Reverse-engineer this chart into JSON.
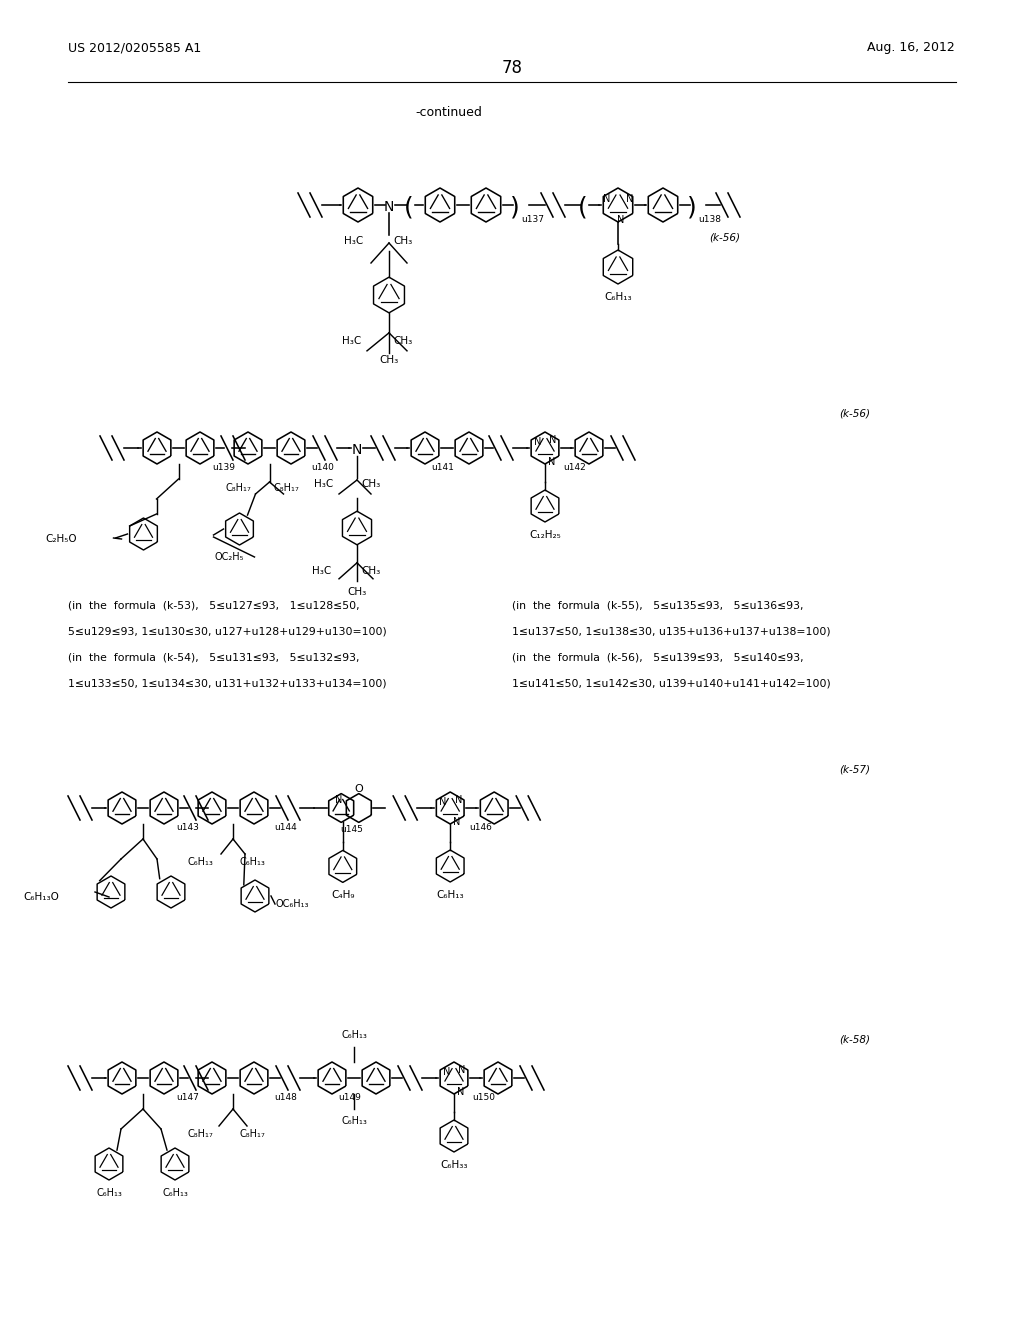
{
  "page_header_left": "US 2012/0205585 A1",
  "page_header_right": "Aug. 16, 2012",
  "page_number": "78",
  "continued_label": "-continued",
  "background_color": "#ffffff",
  "text_color": "#000000",
  "cond_col1": [
    "(in  the  formula  (k-53),   5≤u127≤93,   1≤u128≤50,",
    "5≤u129≤93, 1≤u130≤30, u127+u128+u129+u130=100)",
    "(in  the  formula  (k-54),   5≤u131≤93,   5≤u132≤93,",
    "1≤u133≤50, 1≤u134≤30, u131+u132+u133+u134=100)"
  ],
  "cond_col2": [
    "(in  the  formula  (k-55),   5≤u135≤93,   5≤u136≤93,",
    "1≤u137≤50, 1≤u138≤30, u135+u136+u137+u138=100)",
    "(in  the  formula  (k-56),   5≤u139≤93,   5≤u140≤93,",
    "1≤u141≤50, 1≤u142≤30, u139+u140+u141+u142=100)"
  ]
}
